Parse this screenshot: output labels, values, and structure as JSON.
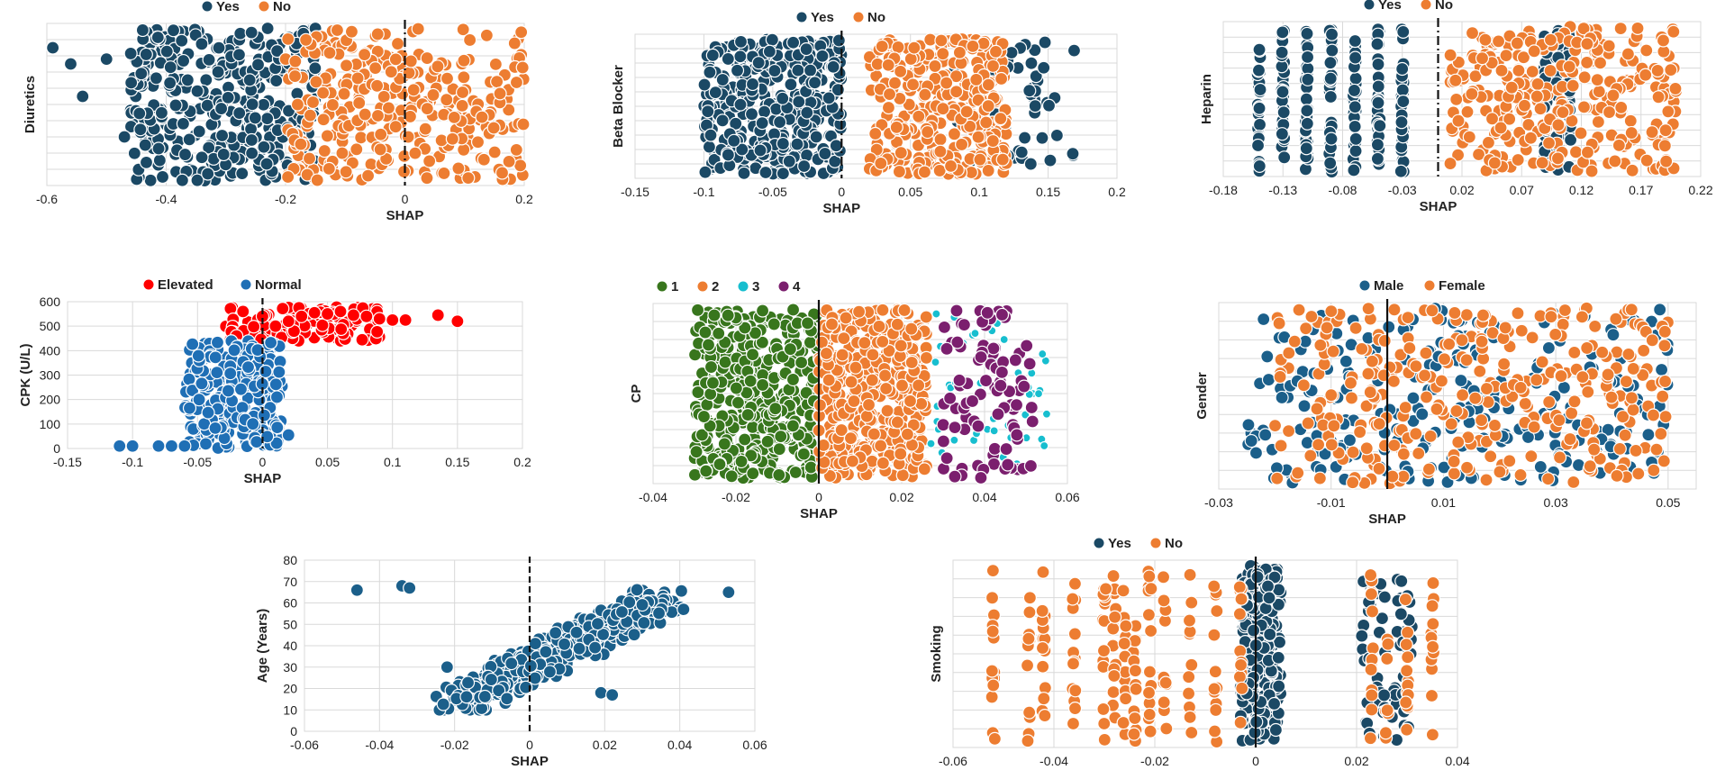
{
  "chart_data": [
    {
      "id": "diuretics",
      "type": "scatter",
      "ylabel": "Diuretics",
      "xlabel": "SHAP",
      "xlim": [
        -0.6,
        0.2
      ],
      "xticks": [
        "-0.6",
        "-0.4",
        "-0.2",
        "0",
        "0.2"
      ],
      "xtick_values": [
        -0.6,
        -0.4,
        -0.2,
        0,
        0.2
      ],
      "ylim": [
        0,
        1
      ],
      "grid": true,
      "legend_position": "top",
      "zero_line": {
        "x": 0,
        "style": "dashdot"
      },
      "series": [
        {
          "name": "Yes",
          "color": "#1b4965",
          "xrange": [
            -0.46,
            -0.15
          ],
          "n": 380,
          "outliers": [
            [
              -0.59,
              0.85
            ],
            [
              -0.56,
              0.75
            ],
            [
              -0.54,
              0.55
            ],
            [
              -0.5,
              0.78
            ],
            [
              -0.47,
              0.3
            ]
          ]
        },
        {
          "name": "No",
          "color": "#ed7d31",
          "xrange": [
            -0.2,
            0.2
          ],
          "n": 300
        }
      ]
    },
    {
      "id": "beta-blocker",
      "type": "scatter",
      "ylabel": "Beta Blocker",
      "xlabel": "SHAP",
      "xlim": [
        -0.15,
        0.2
      ],
      "xticks": [
        "-0.15",
        "-0.1",
        "-0.05",
        "0",
        "0.05",
        "0.1",
        "0.15",
        "0.2"
      ],
      "xtick_values": [
        -0.15,
        -0.1,
        -0.05,
        0,
        0.05,
        0.1,
        0.15,
        0.2
      ],
      "ylim": [
        0,
        1
      ],
      "grid": true,
      "legend_position": "top",
      "zero_line": {
        "x": 0,
        "style": "dashdot"
      },
      "series": [
        {
          "name": "Yes",
          "color": "#1b4965",
          "xrange": [
            -0.1,
            0.0
          ],
          "n": 360,
          "extra_xrange": [
            0.08,
            0.17
          ],
          "extra_n": 55
        },
        {
          "name": "No",
          "color": "#ed7d31",
          "xrange": [
            0.02,
            0.12
          ],
          "n": 330
        }
      ]
    },
    {
      "id": "heparin",
      "type": "scatter",
      "ylabel": "Heparin",
      "xlabel": "SHAP",
      "xlim": [
        -0.18,
        0.22
      ],
      "xticks": [
        "-0.18",
        "-0.13",
        "-0.08",
        "-0.03",
        "0.02",
        "0.07",
        "0.12",
        "0.17",
        "0.22"
      ],
      "xtick_values": [
        -0.18,
        -0.13,
        -0.08,
        -0.03,
        0.02,
        0.07,
        0.12,
        0.17,
        0.22
      ],
      "ylim": [
        0,
        1
      ],
      "grid": true,
      "legend_position": "top",
      "zero_line": {
        "x": 0,
        "style": "dashdot"
      },
      "series": [
        {
          "name": "Yes",
          "color": "#1b4965",
          "columns": [
            -0.15,
            -0.13,
            -0.11,
            -0.09,
            -0.07,
            -0.05,
            -0.03,
            0.09,
            0.1,
            0.11
          ],
          "n": 320
        },
        {
          "name": "No",
          "color": "#ed7d31",
          "xrange": [
            0.01,
            0.2
          ],
          "n": 300
        }
      ]
    },
    {
      "id": "cpk",
      "type": "scatter",
      "ylabel": "CPK (U/L)",
      "xlabel": "SHAP",
      "xlim": [
        -0.15,
        0.2
      ],
      "xticks": [
        "-0.15",
        "-0.1",
        "-0.05",
        "0",
        "0.05",
        "0.1",
        "0.15",
        "0.2"
      ],
      "xtick_values": [
        -0.15,
        -0.1,
        -0.05,
        0,
        0.05,
        0.1,
        0.15,
        0.2
      ],
      "ylim": [
        0,
        600
      ],
      "yticks": [
        "0",
        "100",
        "200",
        "300",
        "400",
        "500",
        "600"
      ],
      "ytick_values": [
        0,
        100,
        200,
        300,
        400,
        500,
        600
      ],
      "grid": true,
      "legend_position": "top",
      "zero_line": {
        "x": 0,
        "style": "dashed"
      },
      "series": [
        {
          "name": "Elevated",
          "color": "#ff0000",
          "points": [
            [
              -0.02,
              460
            ],
            [
              -0.015,
              560
            ],
            [
              0.0,
              540
            ],
            [
              0.01,
              500
            ],
            [
              0.02,
              520
            ],
            [
              0.03,
              540
            ],
            [
              0.04,
              555
            ],
            [
              0.05,
              550
            ],
            [
              0.06,
              560
            ],
            [
              0.07,
              545
            ],
            [
              0.08,
              540
            ],
            [
              0.09,
              530
            ],
            [
              0.1,
              525
            ],
            [
              0.11,
              525
            ],
            [
              0.135,
              545
            ],
            [
              0.15,
              520
            ]
          ],
          "band": {
            "x": [
              -0.03,
              0.09
            ],
            "y": [
              440,
              580
            ]
          },
          "n": 120
        },
        {
          "name": "Normal",
          "color": "#1f6fb5",
          "points": [
            [
              -0.11,
              10
            ],
            [
              -0.1,
              10
            ],
            [
              -0.08,
              10
            ],
            [
              -0.07,
              10
            ],
            [
              -0.06,
              10
            ],
            [
              0.02,
              55
            ]
          ],
          "band": {
            "x": [
              -0.06,
              0.015
            ],
            "y": [
              0,
              440
            ]
          },
          "n": 260
        }
      ]
    },
    {
      "id": "cp",
      "type": "scatter",
      "ylabel": "CP",
      "xlabel": "SHAP",
      "xlim": [
        -0.04,
        0.06
      ],
      "xticks": [
        "-0.04",
        "-0.02",
        "0",
        "0.02",
        "0.04",
        "0.06"
      ],
      "xtick_values": [
        -0.04,
        -0.02,
        0,
        0.02,
        0.04,
        0.06
      ],
      "ylim": [
        0,
        1
      ],
      "grid": true,
      "legend_position": "top",
      "zero_line": {
        "x": 0,
        "style": "solid"
      },
      "series": [
        {
          "name": "1",
          "color": "#38761d",
          "xrange": [
            -0.03,
            0.0
          ],
          "n": 420
        },
        {
          "name": "2",
          "color": "#ed7d31",
          "xrange": [
            0.0,
            0.026
          ],
          "n": 420
        },
        {
          "name": "3",
          "color": "#17becf",
          "xrange": [
            0.027,
            0.055
          ],
          "n": 50
        },
        {
          "name": "4",
          "color": "#7b1f6e",
          "xrange": [
            0.03,
            0.052
          ],
          "n": 90
        }
      ]
    },
    {
      "id": "gender",
      "type": "scatter",
      "ylabel": "Gender",
      "xlabel": "SHAP",
      "xlim": [
        -0.03,
        0.055
      ],
      "xticks": [
        "-0.03",
        "-0.01",
        "0.01",
        "0.03",
        "0.05"
      ],
      "xtick_values": [
        -0.03,
        -0.01,
        0.01,
        0.03,
        0.05
      ],
      "ylim": [
        0,
        1
      ],
      "grid": true,
      "legend_position": "top",
      "zero_line": {
        "x": 0,
        "style": "solid"
      },
      "series": [
        {
          "name": "Male",
          "color": "#1b5f8a",
          "xrange": [
            -0.025,
            0.05
          ],
          "n": 260
        },
        {
          "name": "Female",
          "color": "#ed7d31",
          "xrange": [
            -0.02,
            0.05
          ],
          "n": 330
        }
      ]
    },
    {
      "id": "age",
      "type": "scatter",
      "ylabel": "Age (Years)",
      "xlabel": "SHAP",
      "xlim": [
        -0.06,
        0.06
      ],
      "xticks": [
        "-0.06",
        "-0.04",
        "-0.02",
        "0",
        "0.02",
        "0.04",
        "0.06"
      ],
      "xtick_values": [
        -0.06,
        -0.04,
        -0.02,
        0,
        0.02,
        0.04,
        0.06
      ],
      "ylim": [
        0,
        80
      ],
      "yticks": [
        "0",
        "10",
        "20",
        "30",
        "40",
        "50",
        "60",
        "70",
        "80"
      ],
      "ytick_values": [
        0,
        10,
        20,
        30,
        40,
        50,
        60,
        70,
        80
      ],
      "grid": true,
      "legend_position": "none",
      "zero_line": {
        "x": 0,
        "style": "dashed"
      },
      "series": [
        {
          "name": "",
          "color": "#1b5f8a",
          "points": [
            [
              -0.046,
              66
            ],
            [
              -0.034,
              68
            ],
            [
              -0.032,
              67
            ],
            [
              -0.022,
              30
            ],
            [
              0.041,
              57
            ],
            [
              0.053,
              65
            ],
            [
              0.019,
              18
            ],
            [
              0.022,
              17
            ]
          ],
          "n": 420
        }
      ]
    },
    {
      "id": "smoking",
      "type": "scatter",
      "ylabel": "Smoking",
      "xlabel": "SHAP",
      "xlim": [
        -0.06,
        0.04
      ],
      "xticks": [
        "-0.06",
        "-0.04",
        "-0.02",
        "0",
        "0.02",
        "0.04"
      ],
      "xtick_values": [
        -0.06,
        -0.04,
        -0.02,
        0,
        0.02,
        0.04
      ],
      "ylim": [
        0,
        1
      ],
      "grid": true,
      "legend_position": "top",
      "zero_line": {
        "x": 0,
        "style": "solid"
      },
      "series": [
        {
          "name": "Yes",
          "color": "#1b4965",
          "xrange": [
            -0.003,
            0.005
          ],
          "n": 260,
          "extra_columns": [
            0.022,
            0.025,
            0.028,
            0.03
          ],
          "extra_n": 60
        },
        {
          "name": "No",
          "color": "#ed7d31",
          "columns": [
            -0.052,
            -0.045,
            -0.042,
            -0.036,
            -0.03,
            -0.028,
            -0.026,
            -0.024,
            -0.021,
            -0.018,
            -0.013,
            -0.008,
            -0.003,
            0.023,
            0.026,
            0.03,
            0.035
          ],
          "n": 230
        }
      ]
    }
  ]
}
